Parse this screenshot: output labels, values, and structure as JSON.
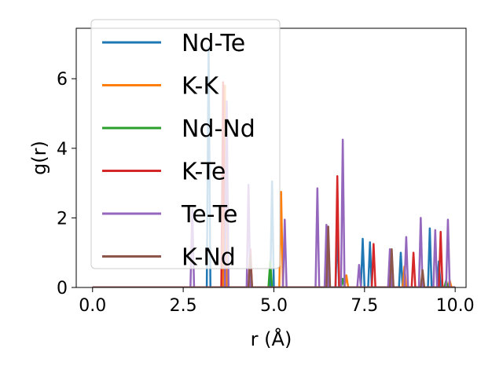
{
  "chart_data": {
    "type": "line",
    "xlabel": "r (Å)",
    "ylabel": "g(r)",
    "xlim": [
      -0.45,
      10.3
    ],
    "ylim": [
      0,
      7.45
    ],
    "xticks": [
      0.0,
      2.5,
      5.0,
      7.5,
      10.0
    ],
    "xtick_labels": [
      "0.0",
      "2.5",
      "5.0",
      "7.5",
      "10.0"
    ],
    "yticks": [
      0,
      2,
      4,
      6
    ],
    "ytick_labels": [
      "0",
      "2",
      "4",
      "6"
    ],
    "grid": false,
    "legend_position": "upper-left",
    "series": [
      {
        "name": "Nd-Te",
        "color": "#1f77b4",
        "peaks": [
          [
            3.2,
            6.9
          ],
          [
            4.95,
            3.05
          ],
          [
            6.75,
            1.65
          ],
          [
            7.45,
            1.4
          ],
          [
            7.65,
            1.3
          ],
          [
            8.5,
            1.0
          ],
          [
            9.3,
            1.7
          ],
          [
            9.55,
            0.75
          ]
        ]
      },
      {
        "name": "K-K",
        "color": "#ff7f0e",
        "peaks": [
          [
            3.65,
            5.8
          ],
          [
            5.2,
            2.75
          ],
          [
            7.0,
            0.35
          ],
          [
            8.6,
            0.6
          ],
          [
            9.85,
            0.2
          ]
        ]
      },
      {
        "name": "Nd-Nd",
        "color": "#2ca02c",
        "peaks": [
          [
            4.9,
            0.75
          ],
          [
            6.9,
            0.25
          ],
          [
            9.75,
            0.2
          ]
        ]
      },
      {
        "name": "K-Te",
        "color": "#d62728",
        "peaks": [
          [
            3.6,
            5.9
          ],
          [
            4.35,
            1.1
          ],
          [
            6.75,
            3.2
          ],
          [
            7.75,
            1.25
          ],
          [
            8.85,
            1.0
          ],
          [
            9.6,
            1.6
          ]
        ]
      },
      {
        "name": "Te-Te",
        "color": "#9467bd",
        "peaks": [
          [
            2.75,
            2.25
          ],
          [
            3.7,
            5.35
          ],
          [
            4.3,
            2.95
          ],
          [
            5.3,
            1.95
          ],
          [
            6.2,
            2.85
          ],
          [
            6.45,
            1.8
          ],
          [
            6.9,
            4.25
          ],
          [
            7.35,
            0.65
          ],
          [
            8.2,
            1.1
          ],
          [
            8.65,
            1.45
          ],
          [
            9.05,
            2.0
          ],
          [
            9.45,
            1.65
          ],
          [
            9.8,
            1.95
          ]
        ]
      },
      {
        "name": "K-Nd",
        "color": "#8c564b",
        "peaks": [
          [
            4.35,
            0.9
          ],
          [
            6.5,
            1.75
          ],
          [
            8.25,
            1.1
          ],
          [
            9.1,
            0.5
          ]
        ]
      }
    ]
  }
}
